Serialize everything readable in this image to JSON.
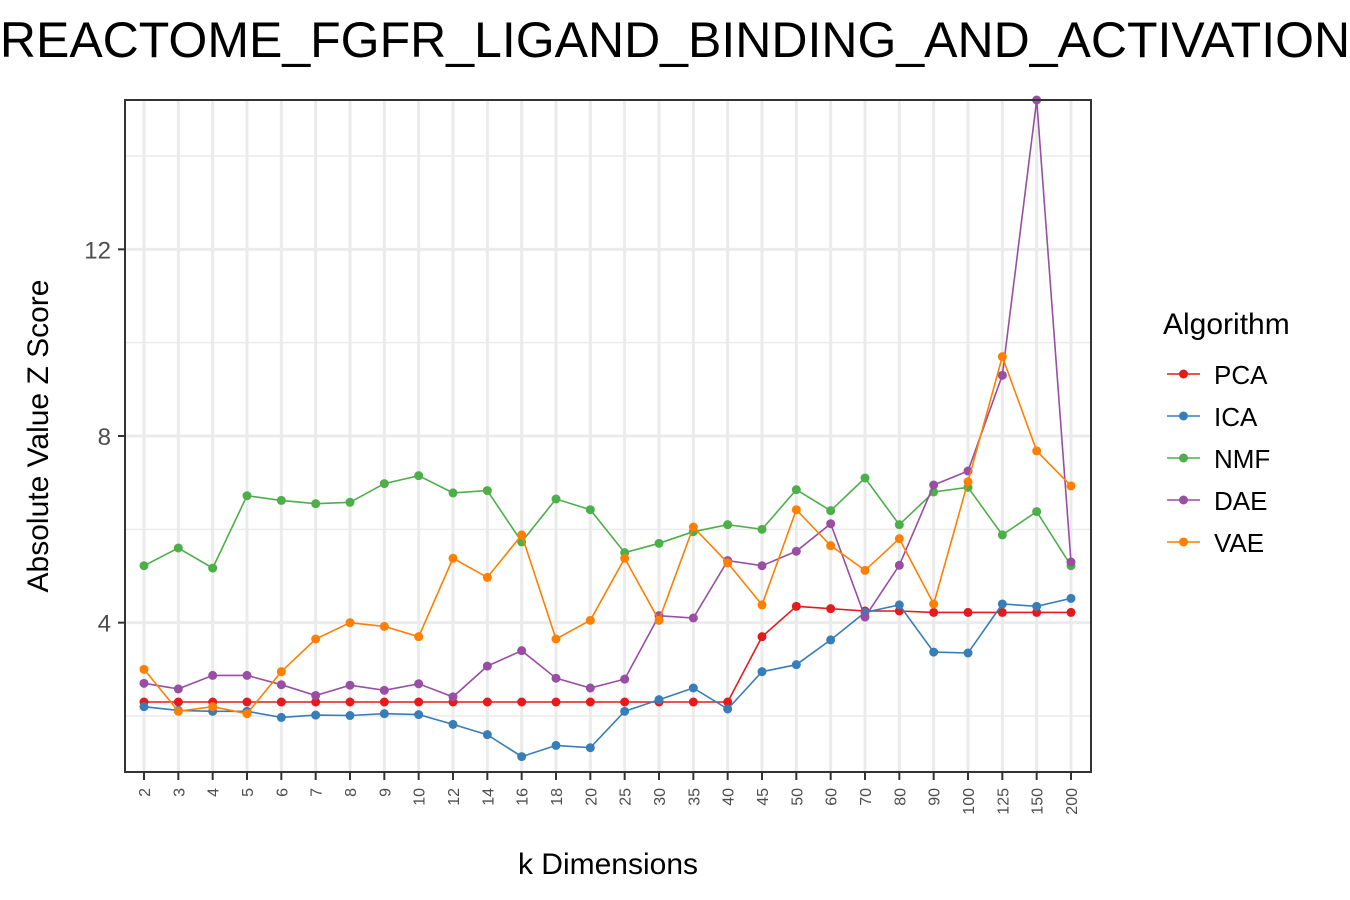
{
  "chart_data": {
    "type": "line",
    "title": "REACTOME_FGFR_LIGAND_BINDING_AND_ACTIVATION",
    "xlabel": "k Dimensions",
    "ylabel": "Absolute Value Z Score",
    "categories": [
      "2",
      "3",
      "4",
      "5",
      "6",
      "7",
      "8",
      "9",
      "10",
      "12",
      "14",
      "16",
      "18",
      "20",
      "25",
      "30",
      "35",
      "40",
      "45",
      "50",
      "60",
      "70",
      "80",
      "90",
      "100",
      "125",
      "150",
      "200"
    ],
    "ylim": [
      0.8,
      15.2
    ],
    "y_ticks": [
      4,
      8,
      12
    ],
    "y_tick_labels": [
      "4",
      "8",
      "12"
    ],
    "grid": true,
    "legend": {
      "title": "Algorithm",
      "position": "right"
    },
    "series": [
      {
        "name": "PCA",
        "color": "#e41a1c",
        "values": [
          2.3,
          2.3,
          2.3,
          2.3,
          2.3,
          2.3,
          2.3,
          2.3,
          2.3,
          2.3,
          2.3,
          2.3,
          2.3,
          2.3,
          2.3,
          2.3,
          2.3,
          2.3,
          3.7,
          4.35,
          4.3,
          4.25,
          4.25,
          4.22,
          4.22,
          4.22,
          4.22,
          4.22
        ]
      },
      {
        "name": "ICA",
        "color": "#377eb8",
        "values": [
          2.2,
          2.12,
          2.1,
          2.1,
          1.97,
          2.02,
          2.01,
          2.05,
          2.03,
          1.82,
          1.6,
          1.13,
          1.37,
          1.32,
          2.1,
          2.35,
          2.6,
          2.15,
          2.95,
          3.1,
          3.63,
          4.22,
          4.38,
          3.37,
          3.35,
          4.4,
          4.35,
          4.52
        ]
      },
      {
        "name": "NMF",
        "color": "#4daf4a",
        "values": [
          5.22,
          5.6,
          5.17,
          6.72,
          6.62,
          6.55,
          6.58,
          6.98,
          7.15,
          6.78,
          6.83,
          5.73,
          6.65,
          6.42,
          5.5,
          5.7,
          5.95,
          6.1,
          6.0,
          6.85,
          6.4,
          7.1,
          6.1,
          6.8,
          6.9,
          5.88,
          6.38,
          5.22
        ]
      },
      {
        "name": "DAE",
        "color": "#984ea3",
        "values": [
          2.7,
          2.58,
          2.87,
          2.87,
          2.67,
          2.44,
          2.66,
          2.55,
          2.69,
          2.41,
          3.07,
          3.4,
          2.81,
          2.6,
          2.79,
          4.15,
          4.1,
          5.33,
          5.22,
          5.53,
          6.12,
          4.12,
          5.23,
          6.95,
          7.25,
          9.3,
          15.2,
          5.3
        ]
      },
      {
        "name": "VAE",
        "color": "#ff7f00",
        "values": [
          3.0,
          2.1,
          2.2,
          2.05,
          2.95,
          3.65,
          4.0,
          3.92,
          3.7,
          5.38,
          4.97,
          5.88,
          3.65,
          4.05,
          5.38,
          4.05,
          6.05,
          5.28,
          4.38,
          6.42,
          5.65,
          5.12,
          5.8,
          4.4,
          7.02,
          9.7,
          7.68,
          6.93
        ]
      }
    ]
  }
}
